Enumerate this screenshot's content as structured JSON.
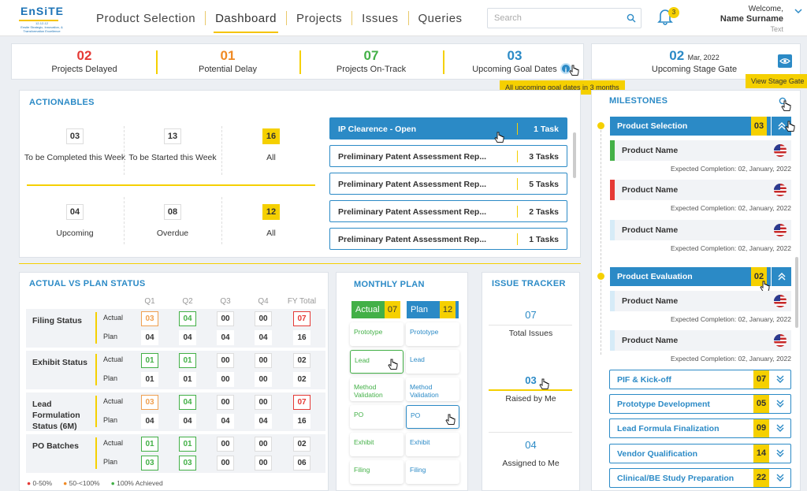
{
  "logo": {
    "title": "EnSiTE",
    "date": "12-12-12",
    "tagline": "Ensite Strategic, Innovation, & Transformation Excellence"
  },
  "nav": [
    "Product Selection",
    "Dashboard",
    "Projects",
    "Issues",
    "Queries"
  ],
  "search": {
    "placeholder": "Search"
  },
  "notifications": {
    "count": "3"
  },
  "user": {
    "greeting": "Welcome,",
    "name": "Name Surname",
    "sub": "Text"
  },
  "stats": [
    {
      "value": "02",
      "label": "Projects Delayed",
      "color": "#e53935"
    },
    {
      "value": "01",
      "label": "Potential Delay",
      "color": "#f08a24"
    },
    {
      "value": "07",
      "label": "Projects On-Track",
      "color": "#43b047"
    },
    {
      "value": "03",
      "label": "Upcoming Goal Dates",
      "color": "#2b8ac6"
    }
  ],
  "goal_tooltip": "All upcoming goal dates in 3 months",
  "stage_gate": {
    "value": "02",
    "date": "Mar, 2022",
    "label": "Upcoming Stage Gate",
    "tooltip": "View Stage Gate"
  },
  "actionables": {
    "title": "ACTIONABLES",
    "cards": [
      {
        "value": "03",
        "label": "To be Completed this Week"
      },
      {
        "value": "13",
        "label": "To be Started this Week"
      },
      {
        "value": "16",
        "label": "All"
      },
      {
        "value": "04",
        "label": "Upcoming"
      },
      {
        "value": "08",
        "label": "Overdue"
      },
      {
        "value": "12",
        "label": "All"
      }
    ],
    "tasks": [
      {
        "name": "IP Clearence - Open",
        "count": "1 Task"
      },
      {
        "name": "Preliminary Patent Assessment Rep...",
        "count": "3 Tasks"
      },
      {
        "name": "Preliminary Patent Assessment Rep...",
        "count": "5 Tasks"
      },
      {
        "name": "Preliminary Patent Assessment Rep...",
        "count": "2 Tasks"
      },
      {
        "name": "Preliminary Patent Assessment Rep...",
        "count": "1 Tasks"
      }
    ]
  },
  "avp": {
    "title": "ACTUAL VS PLAN STATUS",
    "headers": [
      "Q1",
      "Q2",
      "Q3",
      "Q4",
      "FY Total"
    ],
    "row_labels": [
      "Actual",
      "Plan"
    ],
    "groups": [
      {
        "name": "Filing Status",
        "actual": [
          "03",
          "04",
          "00",
          "00",
          "07"
        ],
        "plan": [
          "04",
          "04",
          "04",
          "04",
          "16"
        ],
        "actual_colors": [
          "orange",
          "green",
          "none",
          "none",
          "red"
        ]
      },
      {
        "name": "Exhibit Status",
        "actual": [
          "01",
          "01",
          "00",
          "00",
          "02"
        ],
        "plan": [
          "01",
          "01",
          "00",
          "00",
          "02"
        ],
        "actual_colors": [
          "green",
          "green",
          "none",
          "none",
          "none"
        ]
      },
      {
        "name": "Lead Formulation Status (6M)",
        "actual": [
          "03",
          "04",
          "00",
          "00",
          "07"
        ],
        "plan": [
          "04",
          "04",
          "04",
          "04",
          "16"
        ],
        "actual_colors": [
          "orange",
          "green",
          "none",
          "none",
          "red"
        ]
      },
      {
        "name": "PO Batches",
        "actual": [
          "01",
          "01",
          "00",
          "00",
          "02"
        ],
        "plan": [
          "03",
          "03",
          "00",
          "00",
          "06"
        ],
        "actual_colors": [
          "green",
          "green",
          "none",
          "none",
          "none"
        ],
        "plan_colors": [
          "green",
          "green",
          "none",
          "none",
          "none"
        ]
      }
    ],
    "legend": [
      "0-50%",
      "50-<100%",
      "100% Achieved"
    ]
  },
  "monthly": {
    "title": "MONTHLY PLAN",
    "actual_label": "Actual",
    "actual_count": "07",
    "plan_label": "Plan",
    "plan_count": "12",
    "actual_items": [
      "Prototype",
      "Lead",
      "Method Validation",
      "PO",
      "Exhibit",
      "Filing"
    ],
    "plan_items": [
      "Prototype",
      "Lead",
      "Method Validation",
      "PO",
      "Exhibit",
      "Filing"
    ]
  },
  "issues": {
    "title": "ISSUE TRACKER",
    "items": [
      {
        "value": "07",
        "label": "Total Issues"
      },
      {
        "value": "03",
        "label": "Raised by Me"
      },
      {
        "value": "04",
        "label": "Assigned to Me"
      }
    ]
  },
  "milestones": {
    "title": "MILESTONES",
    "groups": [
      {
        "name": "Product Selection",
        "count": "03"
      },
      {
        "name": "Product Evaluation",
        "count": "02"
      }
    ],
    "items": [
      "Product Name",
      "Product Name",
      "Product Name",
      "Product Name",
      "Product Name"
    ],
    "completion": "Expected Completion: 02, January, 2022",
    "collapsed": [
      {
        "name": "PIF & Kick-off",
        "count": "07"
      },
      {
        "name": "Prototype Development",
        "count": "05"
      },
      {
        "name": "Lead Formula Finalization",
        "count": "09"
      },
      {
        "name": "Vendor Qualification",
        "count": "14"
      },
      {
        "name": "Clinical/BE Study Preparation",
        "count": "22"
      }
    ]
  }
}
